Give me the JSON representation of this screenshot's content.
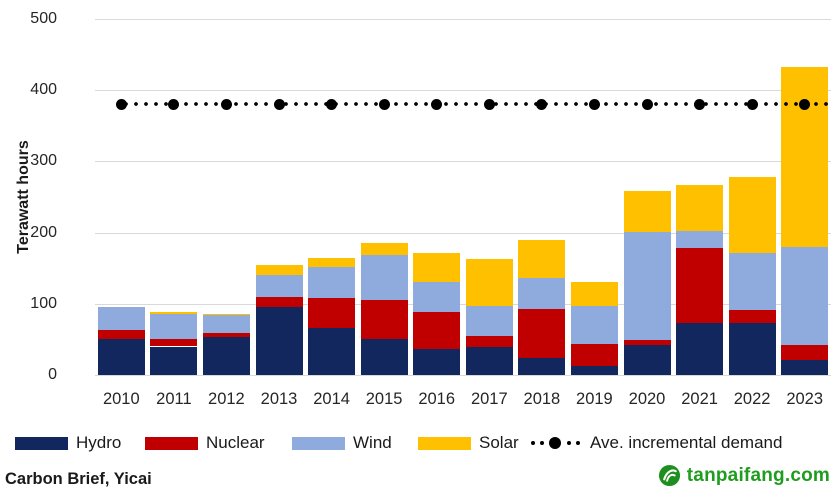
{
  "colors": {
    "hydro": "#12275E",
    "nuclear": "#C00000",
    "wind": "#8FAADC",
    "solar": "#FFC000",
    "line": "#000000",
    "grid": "#D9D9D9",
    "axis_text": "#262626",
    "brand_green": "#1F9D1F"
  },
  "chart_data": {
    "type": "bar",
    "stacked": true,
    "title": "",
    "xlabel": "",
    "ylabel": "Terawatt hours",
    "ylim": [
      0,
      500
    ],
    "yticks": [
      0,
      100,
      200,
      300,
      400,
      500
    ],
    "grid": true,
    "legend_position": "bottom",
    "categories": [
      "2010",
      "2011",
      "2012",
      "2013",
      "2014",
      "2015",
      "2016",
      "2017",
      "2018",
      "2019",
      "2020",
      "2021",
      "2022",
      "2023"
    ],
    "series": [
      {
        "name": "Hydro",
        "color_key": "hydro",
        "values": [
          51,
          40,
          54,
          95,
          66,
          50,
          37,
          39,
          24,
          13,
          42,
          73,
          73,
          21
        ]
      },
      {
        "name": "Nuclear",
        "color_key": "nuclear",
        "values": [
          12,
          10,
          5,
          14,
          42,
          55,
          52,
          16,
          69,
          31,
          7,
          105,
          18,
          21
        ]
      },
      {
        "name": "Wind",
        "color_key": "wind",
        "values": [
          32,
          36,
          25,
          32,
          44,
          63,
          41,
          42,
          43,
          53,
          152,
          24,
          80,
          138
        ]
      },
      {
        "name": "Solar",
        "color_key": "solar",
        "values": [
          0,
          3,
          2,
          13,
          12,
          17,
          41,
          66,
          53,
          33,
          58,
          65,
          107,
          253
        ]
      }
    ],
    "line_series": {
      "name": "Ave. incremental demand",
      "value": 380
    }
  },
  "footer": {
    "source": "Carbon Brief, Yicai",
    "brand": "tanpaifang.com"
  }
}
